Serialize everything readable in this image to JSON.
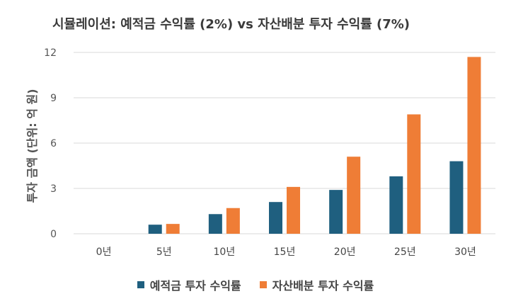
{
  "chart_data": {
    "type": "bar",
    "title": "시뮬레이션: 예적금 수익률 (2%) vs 자산배분 투자 수익률 (7%)",
    "ylabel": "투자 금액 (단위: 억 원)",
    "xlabel": "",
    "categories": [
      "0년",
      "5년",
      "10년",
      "15년",
      "20년",
      "25년",
      "30년"
    ],
    "ylim": [
      0,
      12
    ],
    "yticks": [
      "0",
      "3",
      "6",
      "9",
      "12"
    ],
    "grid": true,
    "legend_position": "bottom",
    "series": [
      {
        "name": "예적금 투자 수익률",
        "color": "#1f5f7f",
        "values": [
          0,
          0.6,
          1.3,
          2.1,
          2.9,
          3.8,
          4.8
        ]
      },
      {
        "name": "자산배분 투자 수익률",
        "color": "#ef7d36",
        "values": [
          0,
          0.65,
          1.7,
          3.1,
          5.1,
          7.9,
          11.7
        ]
      }
    ]
  }
}
